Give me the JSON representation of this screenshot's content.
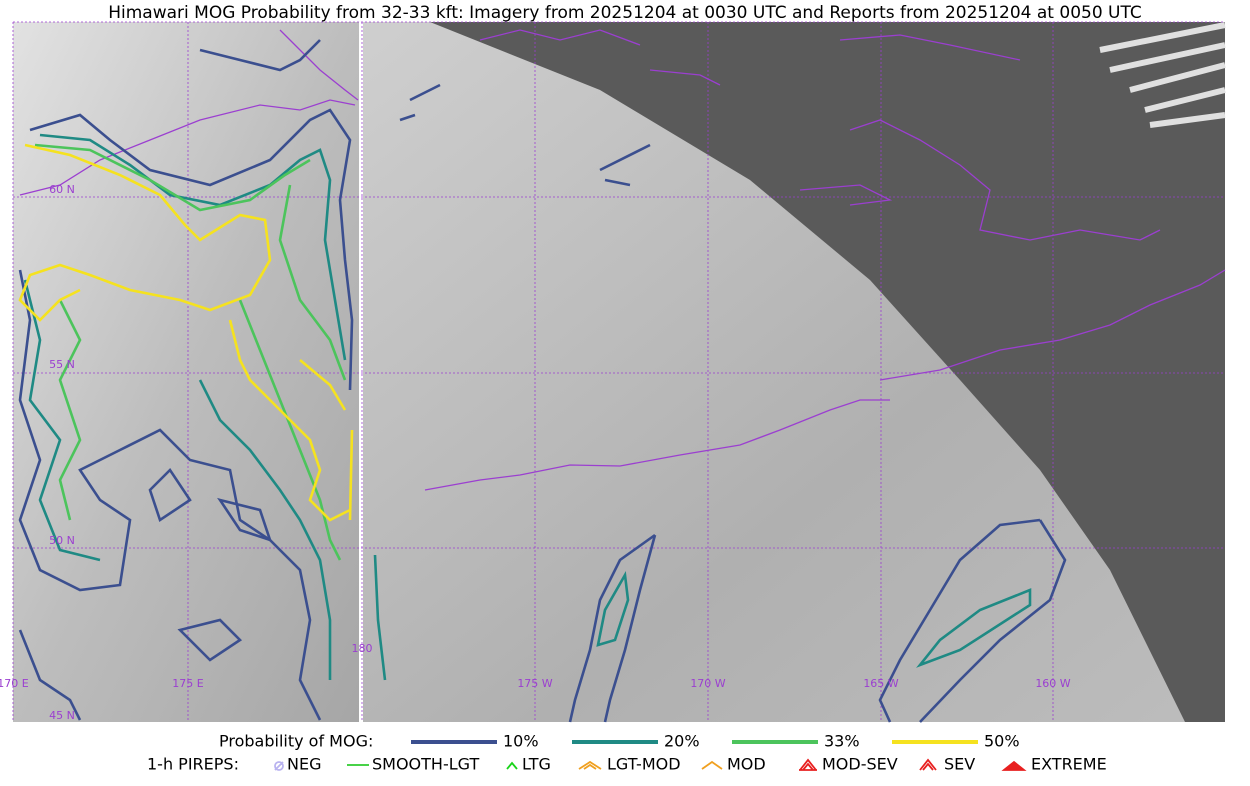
{
  "title": "Himawari MOG Probability from 32-33 kft: Imagery from 20251204 at 0030 UTC and Reports from 20251204 at 0050 UTC",
  "map": {
    "lat_labels": [
      "60 N",
      "55 N",
      "50 N",
      "45 N"
    ],
    "lon_labels": [
      "170 E",
      "175 E",
      "180",
      "175 W",
      "170 W",
      "165 W",
      "160 W"
    ]
  },
  "legend": {
    "probability": {
      "title": "Probability of MOG:",
      "items": [
        {
          "label": "10%",
          "color": "#3b4f8f"
        },
        {
          "label": "20%",
          "color": "#1f8a84"
        },
        {
          "label": "33%",
          "color": "#4cc45c"
        },
        {
          "label": "50%",
          "color": "#f5e21f"
        }
      ]
    },
    "pireps": {
      "title": "1-h PIREPS:",
      "items": [
        {
          "label": "NEG",
          "color": "#b9b3f0"
        },
        {
          "label": "SMOOTH-LGT",
          "color": "#2ecc2e"
        },
        {
          "label": "LTG",
          "color": "#19d419"
        },
        {
          "label": "LGT-MOD",
          "color": "#f0a020"
        },
        {
          "label": "MOD",
          "color": "#f0a020"
        },
        {
          "label": "MOD-SEV",
          "color": "#e82020"
        },
        {
          "label": "SEV",
          "color": "#e82020"
        },
        {
          "label": "EXTREME",
          "color": "#e82020"
        }
      ]
    }
  }
}
